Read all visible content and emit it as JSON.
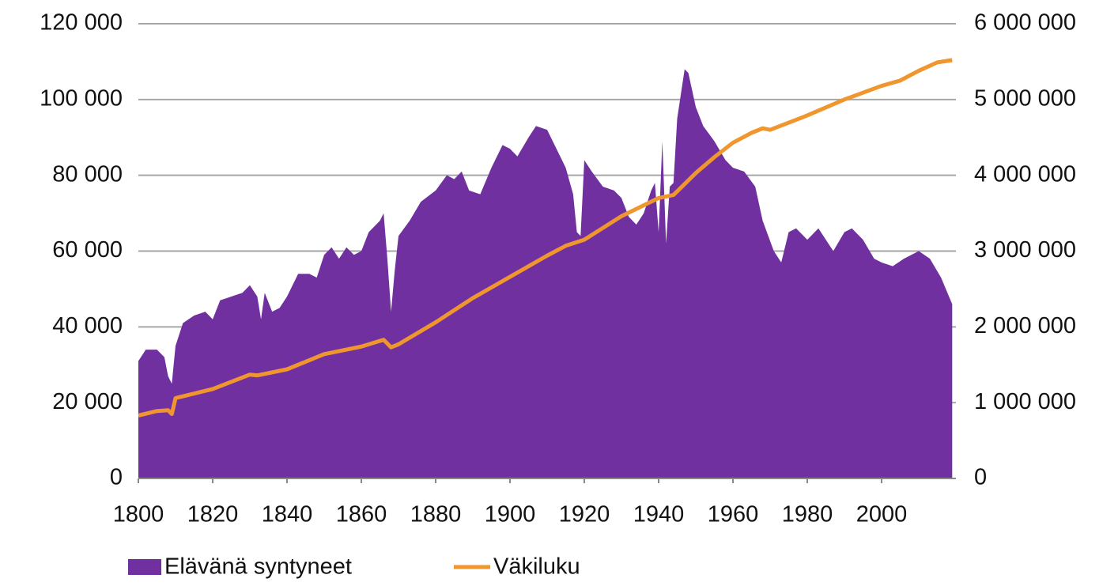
{
  "chart_data": {
    "type": "area-line",
    "xlim": [
      1800,
      2020
    ],
    "xticks": [
      1800,
      1820,
      1840,
      1860,
      1880,
      1900,
      1920,
      1940,
      1960,
      1980,
      2000
    ],
    "ylim": [
      0,
      120000
    ],
    "yticks": [
      0,
      {
        "value": 20000,
        "label": "20 000"
      },
      {
        "value": 40000,
        "label": "40 000"
      },
      {
        "value": 60000,
        "label": "60 000"
      },
      {
        "value": 80000,
        "label": "80 000"
      },
      {
        "value": 100000,
        "label": "100 000"
      },
      {
        "value": 120000,
        "label": "120 000"
      }
    ],
    "y2lim": [
      0,
      6000000
    ],
    "y2ticks": [
      0,
      {
        "value": 1000000,
        "label": "1 000 000"
      },
      {
        "value": 2000000,
        "label": "2 000 000"
      },
      {
        "value": 3000000,
        "label": "3 000 000"
      },
      {
        "value": 4000000,
        "label": "4 000 000"
      },
      {
        "value": 5000000,
        "label": "5 000 000"
      },
      {
        "value": 6000000,
        "label": "6 000 000"
      }
    ],
    "grid": true,
    "legend": "bottom",
    "series": [
      {
        "name": "Elävänä syntyneet",
        "color": "#7030a0",
        "kind": "area",
        "x": [
          1800,
          1802,
          1805,
          1807,
          1808,
          1809,
          1810,
          1812,
          1815,
          1818,
          1820,
          1822,
          1825,
          1828,
          1830,
          1832,
          1833,
          1834,
          1836,
          1838,
          1840,
          1843,
          1846,
          1848,
          1850,
          1852,
          1854,
          1856,
          1858,
          1860,
          1862,
          1865,
          1866,
          1867,
          1868,
          1869,
          1870,
          1873,
          1876,
          1880,
          1883,
          1885,
          1887,
          1889,
          1892,
          1895,
          1898,
          1900,
          1902,
          1905,
          1907,
          1910,
          1913,
          1915,
          1917,
          1918,
          1919,
          1920,
          1922,
          1925,
          1928,
          1930,
          1932,
          1934,
          1936,
          1938,
          1939,
          1940,
          1941,
          1942,
          1943,
          1944,
          1945,
          1947,
          1948,
          1950,
          1952,
          1955,
          1958,
          1960,
          1963,
          1966,
          1968,
          1971,
          1973,
          1975,
          1977,
          1980,
          1983,
          1985,
          1987,
          1990,
          1992,
          1995,
          1998,
          2000,
          2003,
          2006,
          2010,
          2013,
          2016,
          2019
        ],
        "values": [
          31000,
          34000,
          34000,
          32000,
          27000,
          25000,
          35000,
          41000,
          43000,
          44000,
          42000,
          47000,
          48000,
          49000,
          51000,
          48000,
          42000,
          49000,
          44000,
          45000,
          48000,
          54000,
          54000,
          53000,
          59000,
          61000,
          58000,
          61000,
          59000,
          60000,
          65000,
          68000,
          70000,
          58000,
          44000,
          55000,
          64000,
          68000,
          73000,
          76000,
          80000,
          79000,
          81000,
          76000,
          75000,
          82000,
          88000,
          87000,
          85000,
          90000,
          93000,
          92000,
          86000,
          82000,
          75000,
          65000,
          64000,
          84000,
          81000,
          77000,
          76000,
          74000,
          69000,
          67000,
          70000,
          76000,
          78000,
          65000,
          89000,
          62000,
          77000,
          78000,
          95000,
          108000,
          107000,
          98000,
          93000,
          89000,
          84000,
          82000,
          81000,
          77000,
          68000,
          60000,
          57000,
          65000,
          66000,
          63000,
          66000,
          63000,
          60000,
          65000,
          66000,
          63000,
          58000,
          57000,
          56000,
          58000,
          60000,
          58000,
          53000,
          46000
        ]
      },
      {
        "name": "Väkiluku",
        "color": "#f0962e",
        "kind": "line",
        "axis": "y2",
        "x": [
          1800,
          1805,
          1808,
          1809,
          1810,
          1820,
          1830,
          1832,
          1840,
          1850,
          1860,
          1866,
          1868,
          1870,
          1880,
          1890,
          1900,
          1910,
          1915,
          1920,
          1930,
          1940,
          1944,
          1950,
          1955,
          1960,
          1965,
          1968,
          1970,
          1980,
          1990,
          2000,
          2005,
          2010,
          2015,
          2019
        ],
        "values": [
          830000,
          890000,
          900000,
          850000,
          1060000,
          1180000,
          1370000,
          1360000,
          1440000,
          1640000,
          1740000,
          1830000,
          1730000,
          1770000,
          2060000,
          2380000,
          2660000,
          2940000,
          3070000,
          3150000,
          3460000,
          3700000,
          3740000,
          4030000,
          4240000,
          4430000,
          4560000,
          4620000,
          4600000,
          4790000,
          5000000,
          5180000,
          5250000,
          5380000,
          5490000,
          5520000
        ]
      }
    ]
  }
}
